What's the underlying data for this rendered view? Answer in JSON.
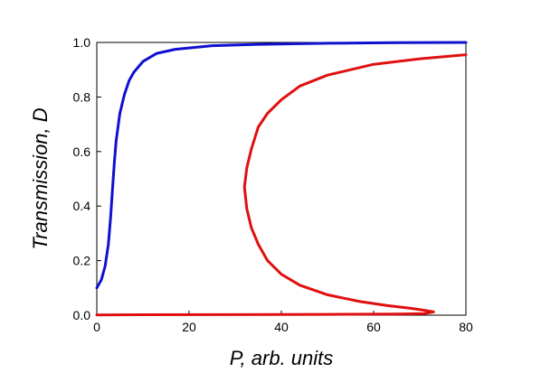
{
  "chart_data": {
    "type": "line",
    "xlabel": "P, arb. units",
    "ylabel": "Transmission, D",
    "xlim": [
      0,
      80
    ],
    "ylim": [
      0,
      1.0
    ],
    "x_ticks": [
      0,
      20,
      40,
      60,
      80
    ],
    "x_tick_labels": [
      "0",
      "20",
      "40",
      "60",
      "80"
    ],
    "y_ticks": [
      0,
      0.2,
      0.4,
      0.6,
      0.8,
      1.0
    ],
    "y_tick_labels": [
      "0.0",
      "0.2",
      "0.4",
      "0.6",
      "0.8",
      "1.0"
    ],
    "grid": false,
    "legend": "none",
    "series": [
      {
        "color": "#1010d0",
        "points": [
          [
            0,
            0.1
          ],
          [
            1,
            0.13
          ],
          [
            1.8,
            0.18
          ],
          [
            2.5,
            0.26
          ],
          [
            3,
            0.36
          ],
          [
            3.4,
            0.46
          ],
          [
            3.8,
            0.56
          ],
          [
            4.2,
            0.64
          ],
          [
            5,
            0.74
          ],
          [
            6,
            0.81
          ],
          [
            7,
            0.86
          ],
          [
            8,
            0.89
          ],
          [
            10,
            0.93
          ],
          [
            13,
            0.96
          ],
          [
            17,
            0.975
          ],
          [
            25,
            0.988
          ],
          [
            35,
            0.993
          ],
          [
            50,
            0.997
          ],
          [
            65,
            0.999
          ],
          [
            80,
            1.0
          ]
        ]
      },
      {
        "color": "#e01010",
        "points": [
          [
            80,
            0.955
          ],
          [
            70,
            0.94
          ],
          [
            60,
            0.92
          ],
          [
            50,
            0.88
          ],
          [
            44,
            0.84
          ],
          [
            40,
            0.79
          ],
          [
            37,
            0.74
          ],
          [
            35,
            0.69
          ],
          [
            33.5,
            0.61
          ],
          [
            32.5,
            0.54
          ],
          [
            32,
            0.47
          ],
          [
            32.5,
            0.39
          ],
          [
            33.5,
            0.32
          ],
          [
            35,
            0.26
          ],
          [
            37,
            0.2
          ],
          [
            40,
            0.15
          ],
          [
            44,
            0.11
          ],
          [
            50,
            0.075
          ],
          [
            57,
            0.05
          ],
          [
            63,
            0.035
          ],
          [
            68,
            0.025
          ],
          [
            71,
            0.018
          ],
          [
            73,
            0.012
          ],
          [
            71,
            0.006
          ],
          [
            65,
            0.004
          ],
          [
            50,
            0.003
          ],
          [
            30,
            0.002
          ],
          [
            10,
            0.0015
          ],
          [
            0,
            0.001
          ]
        ]
      }
    ]
  }
}
